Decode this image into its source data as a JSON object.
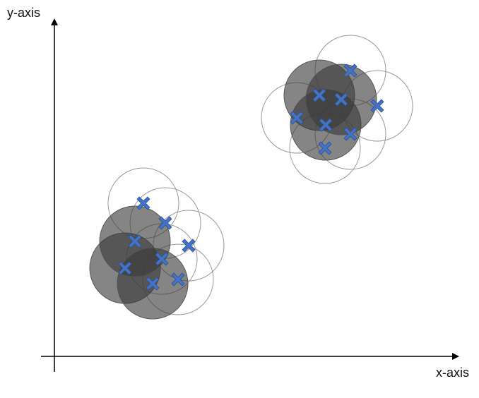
{
  "axes": {
    "y_label": "y-axis",
    "x_label": "x-axis"
  },
  "colors": {
    "axis": "#000000",
    "outline_circle": "#9a9a9a",
    "shaded_circle": "#3a3a3a",
    "cross_fill": "#4472c4",
    "cross_stroke": "#2f528f"
  }
}
